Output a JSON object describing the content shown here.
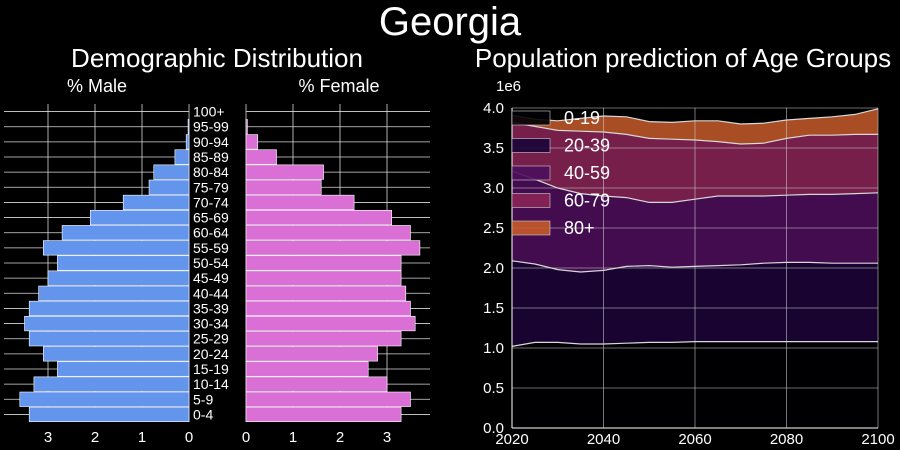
{
  "title": "Georgia",
  "chart_data": [
    {
      "type": "bar",
      "orientation": "horizontal",
      "title": "Demographic Distribution",
      "categories": [
        "0-4",
        "5-9",
        "10-14",
        "15-19",
        "20-24",
        "25-29",
        "30-34",
        "35-39",
        "40-44",
        "45-49",
        "50-54",
        "55-59",
        "60-64",
        "65-69",
        "70-74",
        "75-79",
        "80-84",
        "85-89",
        "90-94",
        "95-99",
        "100+"
      ],
      "series": [
        {
          "name": "% Male",
          "color": "#6495ED",
          "values": [
            3.4,
            3.6,
            3.3,
            2.8,
            3.1,
            3.4,
            3.5,
            3.4,
            3.2,
            3.0,
            2.8,
            3.1,
            2.7,
            2.1,
            1.4,
            0.85,
            0.75,
            0.3,
            0.06,
            0.02,
            0.0
          ]
        },
        {
          "name": "% Female",
          "color": "#DA70D6",
          "values": [
            3.3,
            3.5,
            3.0,
            2.6,
            2.8,
            3.3,
            3.6,
            3.5,
            3.4,
            3.3,
            3.3,
            3.7,
            3.5,
            3.1,
            2.3,
            1.6,
            1.65,
            0.65,
            0.25,
            0.03,
            0.0
          ]
        }
      ],
      "xticks": [
        0,
        1,
        2,
        3
      ]
    },
    {
      "type": "area",
      "stacked": true,
      "title": "Population prediction of Age Groups",
      "scale_label": "1e6",
      "x": [
        2020,
        2025,
        2030,
        2035,
        2040,
        2045,
        2050,
        2055,
        2060,
        2065,
        2070,
        2075,
        2080,
        2085,
        2090,
        2095,
        2100
      ],
      "series": [
        {
          "name": "0-19",
          "color": "#000004",
          "values": [
            1.02,
            1.07,
            1.07,
            1.05,
            1.05,
            1.06,
            1.07,
            1.07,
            1.08,
            1.08,
            1.08,
            1.08,
            1.08,
            1.08,
            1.08,
            1.08,
            1.08
          ]
        },
        {
          "name": "20-39",
          "color": "#1c0439",
          "values": [
            1.07,
            0.98,
            0.91,
            0.9,
            0.92,
            0.96,
            0.96,
            0.94,
            0.94,
            0.95,
            0.96,
            0.98,
            0.99,
            0.99,
            0.98,
            0.98,
            0.98
          ]
        },
        {
          "name": "40-59",
          "color": "#4e0e5c",
          "values": [
            1.12,
            1.06,
            1.02,
            0.98,
            0.93,
            0.86,
            0.79,
            0.81,
            0.84,
            0.87,
            0.86,
            0.84,
            0.84,
            0.85,
            0.86,
            0.87,
            0.88
          ]
        },
        {
          "name": "60-79",
          "color": "#8a2457",
          "values": [
            0.61,
            0.66,
            0.72,
            0.78,
            0.8,
            0.79,
            0.8,
            0.79,
            0.74,
            0.68,
            0.65,
            0.66,
            0.71,
            0.74,
            0.74,
            0.74,
            0.73
          ]
        },
        {
          "name": "80+",
          "color": "#c55a2a",
          "values": [
            0.09,
            0.09,
            0.12,
            0.16,
            0.2,
            0.22,
            0.21,
            0.21,
            0.24,
            0.26,
            0.25,
            0.25,
            0.23,
            0.21,
            0.23,
            0.25,
            0.32
          ]
        }
      ],
      "xlim": [
        2020,
        2100
      ],
      "ylim": [
        0,
        4.0
      ],
      "xticks": [
        2020,
        2040,
        2060,
        2080,
        2100
      ],
      "yticks": [
        0.0,
        0.5,
        1.0,
        1.5,
        2.0,
        2.5,
        3.0,
        3.5,
        4.0
      ],
      "legend": "top-left"
    }
  ]
}
